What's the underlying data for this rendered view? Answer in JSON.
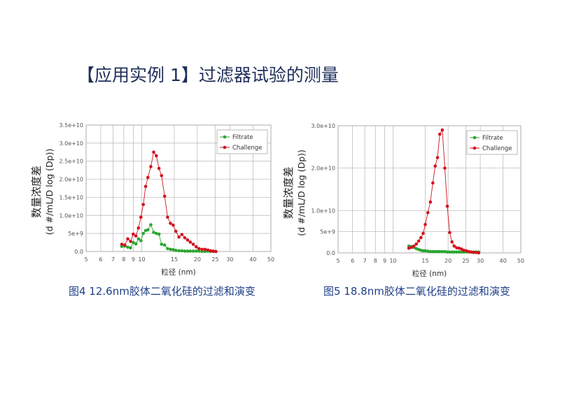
{
  "title": "【应用实例 1】过滤器试验的测量",
  "colors": {
    "filtrate": "#2aa630",
    "challenge": "#d3121d",
    "grid": "#b4b4b4",
    "axis_text": "#555555",
    "title": "#1f2f5a",
    "caption": "#1f3f88"
  },
  "charts": [
    {
      "caption": "图4  12.6nm胶体二氧化硅的过滤和演变",
      "chart_data": {
        "type": "line",
        "xlabel": "粒径 (nm)",
        "ylabel_line1": "数量浓度差",
        "ylabel_line2": "(d #/mL/D log (Dp))",
        "x_scale": "log",
        "xlim": [
          5,
          50
        ],
        "ylim": [
          0,
          35000000000.0
        ],
        "xticks": [
          5,
          6,
          7,
          8,
          9,
          10,
          15,
          20,
          25,
          30,
          40,
          50
        ],
        "yticks": [
          0,
          5000000000.0,
          10000000000.0,
          15000000000.0,
          20000000000.0,
          25000000000.0,
          30000000000.0,
          35000000000.0
        ],
        "ytick_labels": [
          "0.0",
          "5e+9",
          "1.0e+10",
          "1.5e+10",
          "2.0e+10",
          "2.5e+10",
          "3.0e+10",
          "3.5e+10"
        ],
        "grid": true,
        "legend_position": "top-right",
        "series": [
          {
            "name": "Filtrate",
            "color": "#2aa630",
            "x": [
              7.8,
              8.1,
              8.4,
              8.7,
              9.0,
              9.3,
              9.6,
              9.9,
              10.2,
              10.5,
              10.8,
              11.2,
              11.6,
              12.0,
              12.4,
              12.8,
              13.3,
              13.8,
              14.3,
              14.8,
              15.3,
              15.9,
              16.5,
              17.1,
              17.7,
              18.3,
              19.0,
              19.7,
              20.4,
              21.2,
              22.0,
              22.8,
              23.6,
              24.4,
              25.2
            ],
            "y": [
              1400000000.0,
              1500000000.0,
              1200000000.0,
              1000000000.0,
              2500000000.0,
              2100000000.0,
              3500000000.0,
              3000000000.0,
              5000000000.0,
              5800000000.0,
              6000000000.0,
              7400000000.0,
              5300000000.0,
              5000000000.0,
              4800000000.0,
              2000000000.0,
              1800000000.0,
              800000000.0,
              600000000.0,
              500000000.0,
              300000000.0,
              200000000.0,
              200000000.0,
              100000000.0,
              100000000.0,
              100000000.0,
              100000000.0,
              100000000.0,
              100000000.0,
              0,
              0,
              100000000.0,
              0,
              0,
              0
            ]
          },
          {
            "name": "Challenge",
            "color": "#d3121d",
            "x": [
              7.8,
              8.1,
              8.4,
              8.7,
              9.0,
              9.3,
              9.6,
              9.9,
              10.2,
              10.5,
              10.8,
              11.2,
              11.6,
              12.0,
              12.4,
              12.8,
              13.3,
              13.8,
              14.3,
              14.8,
              15.3,
              15.9,
              16.5,
              17.1,
              17.7,
              18.3,
              19.0,
              19.7,
              20.4,
              21.2,
              22.0,
              22.8,
              23.6,
              24.4,
              25.2
            ],
            "y": [
              2000000000.0,
              1800000000.0,
              3500000000.0,
              2800000000.0,
              4800000000.0,
              4300000000.0,
              6500000000.0,
              9500000000.0,
              13000000000.0,
              18000000000.0,
              20500000000.0,
              23500000000.0,
              27500000000.0,
              26500000000.0,
              23000000000.0,
              21000000000.0,
              15300000000.0,
              9500000000.0,
              7800000000.0,
              7300000000.0,
              5600000000.0,
              4000000000.0,
              4700000000.0,
              3800000000.0,
              3200000000.0,
              2600000000.0,
              2000000000.0,
              1300000000.0,
              800000000.0,
              600000000.0,
              600000000.0,
              400000000.0,
              200000000.0,
              100000000.0,
              0
            ]
          }
        ]
      }
    },
    {
      "caption": "图5  18.8nm胶体二氧化硅的过滤和演变",
      "chart_data": {
        "type": "line",
        "xlabel": "粒径 (nm)",
        "ylabel_line1": "数量浓度差",
        "ylabel_line2": "(d #/mL/D log (Dp))",
        "x_scale": "log",
        "xlim": [
          5,
          50
        ],
        "ylim": [
          0,
          30000000000.0
        ],
        "xticks": [
          5,
          6,
          7,
          8,
          9,
          10,
          15,
          20,
          25,
          30,
          40,
          50
        ],
        "yticks": [
          0,
          5000000000.0,
          10000000000.0,
          20000000000.0,
          30000000000.0
        ],
        "ytick_labels": [
          "0.0",
          "5e+9",
          "1.0e+10",
          "2.0e+10",
          "3.0e+10"
        ],
        "grid": true,
        "legend_position": "top-right",
        "series": [
          {
            "name": "Filtrate",
            "color": "#2aa630",
            "x": [
              12.2,
              12.6,
              13.0,
              13.4,
              13.8,
              14.2,
              14.6,
              15.0,
              15.5,
              16.0,
              16.5,
              17.0,
              17.5,
              18.0,
              18.6,
              19.2,
              19.8,
              20.4,
              21.0,
              21.6,
              22.3,
              23.0,
              23.7,
              24.4,
              25.2,
              26.0,
              26.8,
              27.6,
              28.5,
              29.4
            ],
            "y": [
              1600000000.0,
              1500000000.0,
              1300000000.0,
              1000000000.0,
              800000000.0,
              600000000.0,
              500000000.0,
              500000000.0,
              400000000.0,
              300000000.0,
              300000000.0,
              300000000.0,
              300000000.0,
              300000000.0,
              300000000.0,
              300000000.0,
              200000000.0,
              200000000.0,
              200000000.0,
              200000000.0,
              200000000.0,
              200000000.0,
              200000000.0,
              200000000.0,
              200000000.0,
              200000000.0,
              200000000.0,
              200000000.0,
              200000000.0,
              200000000.0
            ]
          },
          {
            "name": "Challenge",
            "color": "#d3121d",
            "x": [
              12.2,
              12.6,
              13.0,
              13.4,
              13.8,
              14.2,
              14.6,
              15.0,
              15.5,
              16.0,
              16.5,
              17.0,
              17.5,
              18.0,
              18.6,
              19.2,
              19.8,
              20.4,
              21.0,
              21.6,
              22.3,
              23.0,
              23.7,
              24.4,
              25.2,
              26.0,
              26.8,
              27.6,
              28.5,
              29.4
            ],
            "y": [
              1100000000.0,
              1300000000.0,
              1600000000.0,
              2100000000.0,
              2800000000.0,
              3600000000.0,
              4600000000.0,
              6700000000.0,
              9500000000.0,
              12000000000.0,
              16500000000.0,
              20500000000.0,
              22500000000.0,
              28000000000.0,
              29000000000.0,
              20000000000.0,
              11000000000.0,
              4800000000.0,
              2600000000.0,
              1600000000.0,
              1200000000.0,
              1100000000.0,
              900000000.0,
              600000000.0,
              500000000.0,
              300000000.0,
              200000000.0,
              100000000.0,
              100000000.0,
              0
            ]
          }
        ]
      }
    }
  ]
}
